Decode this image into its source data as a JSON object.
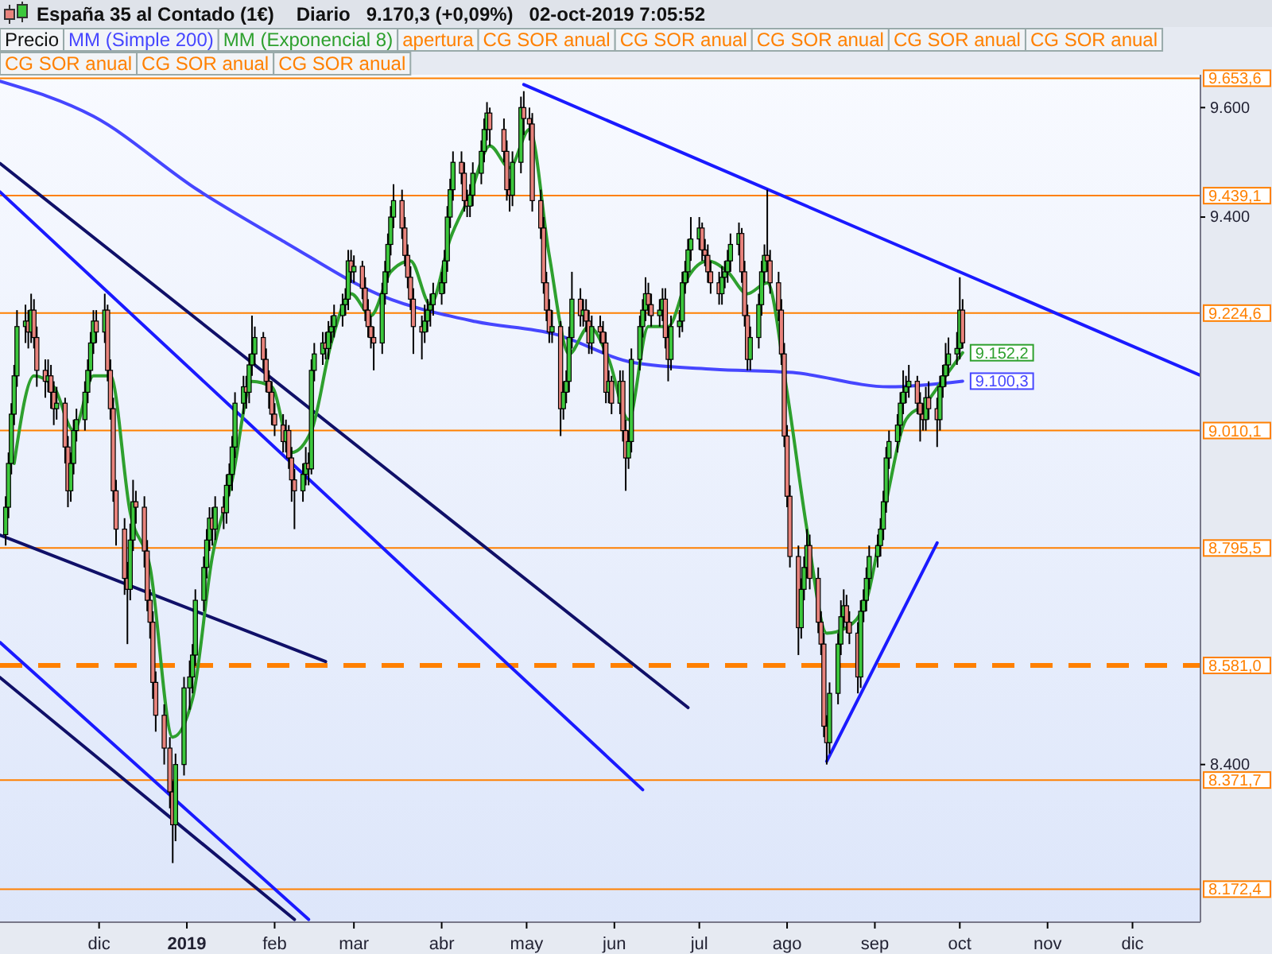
{
  "chart_data": {
    "type": "candlestick",
    "title": "España 35 al Contado (1€)",
    "subtitle": "Diario   9.170,3 (+0,09%)   02-oct-2019 7:05:52",
    "legend": "top left",
    "grid": false,
    "xlim": [
      "2018-10-27",
      "2019-12-25"
    ],
    "xticks": [
      {
        "value": "2018-12-01",
        "label": "dic"
      },
      {
        "value": "2019-01-01",
        "label": "2019"
      },
      {
        "value": "2019-02-01",
        "label": "feb"
      },
      {
        "value": "2019-03-01",
        "label": "mar"
      },
      {
        "value": "2019-04-01",
        "label": "abr"
      },
      {
        "value": "2019-05-01",
        "label": "may"
      },
      {
        "value": "2019-06-01",
        "label": "jun"
      },
      {
        "value": "2019-07-01",
        "label": "jul"
      },
      {
        "value": "2019-08-01",
        "label": "ago"
      },
      {
        "value": "2019-09-01",
        "label": "sep"
      },
      {
        "value": "2019-10-01",
        "label": "oct"
      },
      {
        "value": "2019-11-01",
        "label": "nov"
      },
      {
        "value": "2019-12-01",
        "label": "dic"
      }
    ],
    "ylim": [
      8112,
      9660
    ],
    "yticks": [
      {
        "value": 9600,
        "label": "9.600"
      },
      {
        "value": 9400,
        "label": "9.400"
      },
      {
        "value": 8400,
        "label": "8.400"
      }
    ],
    "ref_lines": [
      {
        "axis": "y",
        "value": 9653.6,
        "label": "9.653,6",
        "color": "#ff8000"
      },
      {
        "axis": "y",
        "value": 9439.1,
        "label": "9.439,1",
        "color": "#ff8000"
      },
      {
        "axis": "y",
        "value": 9224.6,
        "label": "9.224,6",
        "color": "#ff8000"
      },
      {
        "axis": "y",
        "value": 9010.1,
        "label": "9.010,1",
        "color": "#ff8000"
      },
      {
        "axis": "y",
        "value": 8795.5,
        "label": "8.795,5",
        "color": "#ff8000"
      },
      {
        "axis": "y",
        "value": 8581.0,
        "label": "8.581,0",
        "color": "#ff8000",
        "line_style": "dashed"
      },
      {
        "axis": "y",
        "value": 8371.7,
        "label": "8.371,7",
        "color": "#ff8000"
      },
      {
        "axis": "y",
        "value": 8172.4,
        "label": "8.172,4",
        "color": "#ff8000"
      }
    ],
    "annotations": [
      "apertura",
      "CG SOR anual",
      "CG SOR anual",
      "CG SOR anual",
      "CG SOR anual",
      "CG SOR anual",
      "CG SOR anual",
      "CG SOR anual",
      "CG SOR anual"
    ],
    "series": [
      {
        "type": "line",
        "color": "#101068",
        "x": [
          "2018-10-27",
          "2019-06-27"
        ],
        "values": [
          9498,
          8504
        ]
      },
      {
        "type": "line",
        "color": "#1a1aff",
        "x": [
          "2018-10-27",
          "2019-06-11"
        ],
        "values": [
          9446,
          8354
        ]
      },
      {
        "type": "line",
        "color": "#101068",
        "x": [
          "2018-10-27",
          "2019-02-19"
        ],
        "values": [
          8819,
          8588
        ]
      },
      {
        "type": "line",
        "color": "#1a1aff",
        "x": [
          "2018-10-27",
          "2019-02-13"
        ],
        "values": [
          8623,
          8117
        ]
      },
      {
        "type": "line",
        "color": "#101068",
        "x": [
          "2018-10-27",
          "2019-02-08"
        ],
        "values": [
          8559,
          8117
        ]
      },
      {
        "type": "line",
        "color": "#1a1aff",
        "x": [
          "2019-04-30",
          "2019-12-25"
        ],
        "values": [
          9642,
          9111
        ]
      },
      {
        "type": "line",
        "color": "#1a1aff",
        "x": [
          "2019-08-15",
          "2019-09-23"
        ],
        "values": [
          8406,
          8805
        ]
      },
      {
        "type": "line",
        "name": "MM (Simple 200)",
        "color": "#4646ff",
        "x": [
          "2018-10-27",
          "2018-11-29",
          "2019-01-05",
          "2019-02-05",
          "2019-03-10",
          "2019-04-13",
          "2019-05-11",
          "2019-06-08",
          "2019-07-06",
          "2019-08-03",
          "2019-09-06",
          "2019-10-02"
        ],
        "values": [
          9648,
          9584,
          9449,
          9353,
          9258,
          9209,
          9186,
          9134,
          9122,
          9116,
          9090,
          9100.3
        ],
        "value_labels": [
          null,
          null,
          null,
          null,
          null,
          null,
          null,
          null,
          null,
          null,
          null,
          "9.100,3"
        ]
      },
      {
        "name": "Precio",
        "color": "#000000",
        "x": [
          "2018-10-29",
          "2018-10-30",
          "2018-10-31",
          "2018-11-01",
          "2018-11-02",
          "2018-11-05",
          "2018-11-06",
          "2018-11-07",
          "2018-11-08",
          "2018-11-09",
          "2018-11-12",
          "2018-11-13",
          "2018-11-14",
          "2018-11-15",
          "2018-11-16",
          "2018-11-19",
          "2018-11-20",
          "2018-11-21",
          "2018-11-22",
          "2018-11-23",
          "2018-11-26",
          "2018-11-27",
          "2018-11-28",
          "2018-11-29",
          "2018-11-30",
          "2018-12-03",
          "2018-12-04",
          "2018-12-05",
          "2018-12-06",
          "2018-12-07",
          "2018-12-10",
          "2018-12-11",
          "2018-12-12",
          "2018-12-13",
          "2018-12-14",
          "2018-12-17",
          "2018-12-18",
          "2018-12-19",
          "2018-12-20",
          "2018-12-21",
          "2018-12-24",
          "2018-12-26",
          "2018-12-27",
          "2018-12-28",
          "2018-12-31",
          "2019-01-02",
          "2019-01-03",
          "2019-01-04",
          "2019-01-07",
          "2019-01-08",
          "2019-01-09",
          "2019-01-10",
          "2019-01-11",
          "2019-01-14",
          "2019-01-15",
          "2019-01-16",
          "2019-01-17",
          "2019-01-18",
          "2019-01-21",
          "2019-01-22",
          "2019-01-23",
          "2019-01-24",
          "2019-01-25",
          "2019-01-28",
          "2019-01-29",
          "2019-01-30",
          "2019-01-31",
          "2019-02-01",
          "2019-02-04",
          "2019-02-05",
          "2019-02-06",
          "2019-02-07",
          "2019-02-08",
          "2019-02-11",
          "2019-02-12",
          "2019-02-13",
          "2019-02-14",
          "2019-02-15",
          "2019-02-18",
          "2019-02-19",
          "2019-02-20",
          "2019-02-21",
          "2019-02-22",
          "2019-02-25",
          "2019-02-26",
          "2019-02-27",
          "2019-02-28",
          "2019-03-01",
          "2019-03-04",
          "2019-03-05",
          "2019-03-06",
          "2019-03-07",
          "2019-03-08",
          "2019-03-11",
          "2019-03-12",
          "2019-03-13",
          "2019-03-14",
          "2019-03-15",
          "2019-03-18",
          "2019-03-19",
          "2019-03-20",
          "2019-03-21",
          "2019-03-22",
          "2019-03-25",
          "2019-03-26",
          "2019-03-27",
          "2019-03-28",
          "2019-03-29",
          "2019-04-01",
          "2019-04-02",
          "2019-04-03",
          "2019-04-04",
          "2019-04-05",
          "2019-04-08",
          "2019-04-09",
          "2019-04-10",
          "2019-04-11",
          "2019-04-12",
          "2019-04-15",
          "2019-04-16",
          "2019-04-17",
          "2019-04-18",
          "2019-04-23",
          "2019-04-24",
          "2019-04-25",
          "2019-04-26",
          "2019-04-29",
          "2019-04-30",
          "2019-05-02",
          "2019-05-03",
          "2019-05-06",
          "2019-05-07",
          "2019-05-08",
          "2019-05-09",
          "2019-05-10",
          "2019-05-13",
          "2019-05-14",
          "2019-05-15",
          "2019-05-16",
          "2019-05-17",
          "2019-05-20",
          "2019-05-21",
          "2019-05-22",
          "2019-05-23",
          "2019-05-24",
          "2019-05-27",
          "2019-05-28",
          "2019-05-29",
          "2019-05-30",
          "2019-05-31",
          "2019-06-03",
          "2019-06-04",
          "2019-06-05",
          "2019-06-06",
          "2019-06-07",
          "2019-06-10",
          "2019-06-11",
          "2019-06-12",
          "2019-06-13",
          "2019-06-14",
          "2019-06-17",
          "2019-06-18",
          "2019-06-19",
          "2019-06-20",
          "2019-06-21",
          "2019-06-24",
          "2019-06-25",
          "2019-06-26",
          "2019-06-27",
          "2019-06-28",
          "2019-07-01",
          "2019-07-02",
          "2019-07-03",
          "2019-07-04",
          "2019-07-05",
          "2019-07-08",
          "2019-07-09",
          "2019-07-10",
          "2019-07-11",
          "2019-07-12",
          "2019-07-15",
          "2019-07-16",
          "2019-07-17",
          "2019-07-18",
          "2019-07-19",
          "2019-07-22",
          "2019-07-23",
          "2019-07-24",
          "2019-07-25",
          "2019-07-26",
          "2019-07-29",
          "2019-07-30",
          "2019-07-31",
          "2019-08-01",
          "2019-08-02",
          "2019-08-05",
          "2019-08-06",
          "2019-08-07",
          "2019-08-08",
          "2019-08-09",
          "2019-08-12",
          "2019-08-13",
          "2019-08-14",
          "2019-08-15",
          "2019-08-16",
          "2019-08-19",
          "2019-08-20",
          "2019-08-21",
          "2019-08-22",
          "2019-08-23",
          "2019-08-26",
          "2019-08-27",
          "2019-08-28",
          "2019-08-29",
          "2019-08-30",
          "2019-09-02",
          "2019-09-03",
          "2019-09-04",
          "2019-09-05",
          "2019-09-06",
          "2019-09-09",
          "2019-09-10",
          "2019-09-11",
          "2019-09-12",
          "2019-09-13",
          "2019-09-16",
          "2019-09-17",
          "2019-09-18",
          "2019-09-19",
          "2019-09-20",
          "2019-09-23",
          "2019-09-24",
          "2019-09-25",
          "2019-09-26",
          "2019-09-27",
          "2019-09-30",
          "2019-10-01",
          "2019-10-02"
        ],
        "ohlc": [
          [
            8820,
            8890,
            8800,
            8870
          ],
          [
            8870,
            8970,
            8850,
            8950
          ],
          [
            8950,
            9060,
            8930,
            9040
          ],
          [
            9040,
            9130,
            9020,
            9110
          ],
          [
            9110,
            9230,
            9090,
            9200
          ],
          [
            9200,
            9240,
            9170,
            9210
          ],
          [
            9210,
            9230,
            9160,
            9190
          ],
          [
            9190,
            9260,
            9170,
            9230
          ],
          [
            9230,
            9250,
            9160,
            9180
          ],
          [
            9180,
            9200,
            9090,
            9120
          ],
          [
            9120,
            9140,
            9070,
            9100
          ],
          [
            9100,
            9140,
            9080,
            9110
          ],
          [
            9110,
            9130,
            9050,
            9080
          ],
          [
            9080,
            9100,
            9020,
            9050
          ],
          [
            9050,
            9090,
            9030,
            9060
          ],
          [
            9060,
            9070,
            8950,
            8980
          ],
          [
            8980,
            9000,
            8870,
            8900
          ],
          [
            8900,
            8970,
            8880,
            8950
          ],
          [
            8950,
            9030,
            8930,
            9010
          ],
          [
            9010,
            9050,
            8990,
            9030
          ],
          [
            9030,
            9100,
            9010,
            9080
          ],
          [
            9080,
            9140,
            9060,
            9120
          ],
          [
            9120,
            9190,
            9100,
            9170
          ],
          [
            9170,
            9230,
            9150,
            9210
          ],
          [
            9210,
            9230,
            9170,
            9190
          ],
          [
            9190,
            9260,
            9170,
            9230
          ],
          [
            9230,
            9240,
            9100,
            9120
          ],
          [
            9120,
            9140,
            9030,
            9050
          ],
          [
            9050,
            9070,
            8880,
            8900
          ],
          [
            8900,
            8920,
            8800,
            8830
          ],
          [
            8830,
            8850,
            8710,
            8740
          ],
          [
            8740,
            8770,
            8620,
            8720
          ],
          [
            8720,
            8840,
            8700,
            8810
          ],
          [
            8810,
            8920,
            8790,
            8880
          ],
          [
            8880,
            8900,
            8840,
            8870
          ],
          [
            8870,
            8890,
            8760,
            8790
          ],
          [
            8790,
            8810,
            8680,
            8700
          ],
          [
            8700,
            8720,
            8630,
            8660
          ],
          [
            8660,
            8680,
            8520,
            8550
          ],
          [
            8550,
            8570,
            8460,
            8490
          ],
          [
            8490,
            8510,
            8400,
            8430
          ],
          [
            8430,
            8450,
            8320,
            8350
          ],
          [
            8350,
            8370,
            8220,
            8290
          ],
          [
            8290,
            8420,
            8260,
            8400
          ],
          [
            8400,
            8560,
            8380,
            8540
          ],
          [
            8540,
            8590,
            8500,
            8560
          ],
          [
            8560,
            8620,
            8530,
            8600
          ],
          [
            8600,
            8720,
            8580,
            8700
          ],
          [
            8700,
            8780,
            8680,
            8760
          ],
          [
            8760,
            8830,
            8740,
            8810
          ],
          [
            8810,
            8870,
            8790,
            8850
          ],
          [
            8850,
            8870,
            8800,
            8830
          ],
          [
            8830,
            8890,
            8810,
            8870
          ],
          [
            8870,
            8890,
            8830,
            8860
          ],
          [
            8860,
            8930,
            8840,
            8910
          ],
          [
            8910,
            8950,
            8890,
            8930
          ],
          [
            8930,
            9000,
            8900,
            8980
          ],
          [
            8980,
            9080,
            8960,
            9060
          ],
          [
            9060,
            9110,
            9040,
            9090
          ],
          [
            9090,
            9110,
            9050,
            9080
          ],
          [
            9080,
            9150,
            9060,
            9130
          ],
          [
            9130,
            9220,
            9110,
            9150
          ],
          [
            9150,
            9200,
            9130,
            9180
          ],
          [
            9180,
            9190,
            9120,
            9140
          ],
          [
            9140,
            9160,
            9080,
            9100
          ],
          [
            9100,
            9120,
            9050,
            9080
          ],
          [
            9080,
            9100,
            9020,
            9040
          ],
          [
            9040,
            9060,
            9000,
            9020
          ],
          [
            9020,
            9040,
            8970,
            8990
          ],
          [
            8990,
            9030,
            8970,
            9010
          ],
          [
            9010,
            9020,
            8940,
            8960
          ],
          [
            8960,
            8980,
            8880,
            8920
          ],
          [
            8920,
            8940,
            8830,
            8900
          ],
          [
            8900,
            8950,
            8880,
            8930
          ],
          [
            8930,
            8980,
            8910,
            8950
          ],
          [
            8950,
            8970,
            8910,
            8940
          ],
          [
            8940,
            9140,
            8930,
            9120
          ],
          [
            9120,
            9170,
            9100,
            9150
          ],
          [
            9150,
            9190,
            9130,
            9170
          ],
          [
            9170,
            9190,
            9140,
            9160
          ],
          [
            9160,
            9210,
            9140,
            9190
          ],
          [
            9190,
            9220,
            9170,
            9200
          ],
          [
            9200,
            9240,
            9180,
            9220
          ],
          [
            9220,
            9260,
            9200,
            9240
          ],
          [
            9240,
            9270,
            9220,
            9250
          ],
          [
            9250,
            9340,
            9230,
            9320
          ],
          [
            9320,
            9340,
            9280,
            9300
          ],
          [
            9300,
            9330,
            9280,
            9310
          ],
          [
            9310,
            9320,
            9250,
            9270
          ],
          [
            9270,
            9290,
            9210,
            9230
          ],
          [
            9230,
            9250,
            9180,
            9200
          ],
          [
            9200,
            9220,
            9160,
            9180
          ],
          [
            9180,
            9200,
            9120,
            9170
          ],
          [
            9170,
            9280,
            9150,
            9260
          ],
          [
            9260,
            9320,
            9240,
            9300
          ],
          [
            9300,
            9370,
            9280,
            9350
          ],
          [
            9350,
            9420,
            9330,
            9400
          ],
          [
            9400,
            9460,
            9380,
            9430
          ],
          [
            9430,
            9450,
            9360,
            9380
          ],
          [
            9380,
            9400,
            9310,
            9330
          ],
          [
            9330,
            9350,
            9270,
            9290
          ],
          [
            9290,
            9310,
            9230,
            9250
          ],
          [
            9250,
            9270,
            9150,
            9200
          ],
          [
            9200,
            9220,
            9140,
            9190
          ],
          [
            9190,
            9240,
            9170,
            9210
          ],
          [
            9210,
            9250,
            9190,
            9230
          ],
          [
            9230,
            9260,
            9200,
            9240
          ],
          [
            9240,
            9280,
            9220,
            9260
          ],
          [
            9260,
            9300,
            9240,
            9280
          ],
          [
            9280,
            9340,
            9260,
            9320
          ],
          [
            9320,
            9420,
            9300,
            9400
          ],
          [
            9400,
            9470,
            9380,
            9450
          ],
          [
            9450,
            9520,
            9430,
            9500
          ],
          [
            9500,
            9520,
            9460,
            9480
          ],
          [
            9480,
            9500,
            9410,
            9430
          ],
          [
            9430,
            9450,
            9400,
            9420
          ],
          [
            9420,
            9460,
            9400,
            9440
          ],
          [
            9440,
            9500,
            9420,
            9480
          ],
          [
            9480,
            9540,
            9460,
            9520
          ],
          [
            9520,
            9580,
            9500,
            9560
          ],
          [
            9560,
            9610,
            9540,
            9590
          ],
          [
            9590,
            9600,
            9530,
            9560
          ],
          [
            9560,
            9580,
            9500,
            9520
          ],
          [
            9520,
            9540,
            9430,
            9450
          ],
          [
            9450,
            9470,
            9410,
            9440
          ],
          [
            9440,
            9520,
            9420,
            9500
          ],
          [
            9500,
            9620,
            9480,
            9600
          ],
          [
            9600,
            9630,
            9550,
            9580
          ],
          [
            9580,
            9600,
            9540,
            9570
          ],
          [
            9570,
            9590,
            9410,
            9430
          ],
          [
            9430,
            9450,
            9360,
            9380
          ],
          [
            9380,
            9400,
            9260,
            9280
          ],
          [
            9280,
            9300,
            9210,
            9230
          ],
          [
            9230,
            9250,
            9170,
            9190
          ],
          [
            9190,
            9230,
            9170,
            9200
          ],
          [
            9200,
            9210,
            9000,
            9050
          ],
          [
            9050,
            9100,
            9030,
            9080
          ],
          [
            9080,
            9120,
            9060,
            9100
          ],
          [
            9100,
            9200,
            9080,
            9180
          ],
          [
            9180,
            9300,
            9160,
            9250
          ],
          [
            9250,
            9270,
            9200,
            9220
          ],
          [
            9220,
            9250,
            9200,
            9230
          ],
          [
            9230,
            9250,
            9190,
            9210
          ],
          [
            9210,
            9230,
            9150,
            9170
          ],
          [
            9170,
            9220,
            9150,
            9200
          ],
          [
            9200,
            9220,
            9170,
            9190
          ],
          [
            9190,
            9210,
            9150,
            9170
          ],
          [
            9170,
            9190,
            9060,
            9080
          ],
          [
            9080,
            9120,
            9060,
            9100
          ],
          [
            9100,
            9110,
            9040,
            9060
          ],
          [
            9060,
            9120,
            9040,
            9100
          ],
          [
            9100,
            9120,
            8990,
            9010
          ],
          [
            9010,
            9030,
            8900,
            8960
          ],
          [
            8960,
            9010,
            8940,
            8990
          ],
          [
            8990,
            9160,
            8970,
            9140
          ],
          [
            9140,
            9220,
            9120,
            9200
          ],
          [
            9200,
            9250,
            9180,
            9230
          ],
          [
            9230,
            9290,
            9210,
            9260
          ],
          [
            9260,
            9280,
            9220,
            9240
          ],
          [
            9240,
            9260,
            9200,
            9220
          ],
          [
            9220,
            9250,
            9200,
            9230
          ],
          [
            9230,
            9270,
            9210,
            9250
          ],
          [
            9250,
            9270,
            9160,
            9180
          ],
          [
            9180,
            9200,
            9100,
            9140
          ],
          [
            9140,
            9220,
            9120,
            9200
          ],
          [
            9200,
            9230,
            9180,
            9210
          ],
          [
            9210,
            9300,
            9190,
            9280
          ],
          [
            9280,
            9320,
            9260,
            9300
          ],
          [
            9300,
            9360,
            9280,
            9340
          ],
          [
            9340,
            9400,
            9320,
            9360
          ],
          [
            9360,
            9400,
            9340,
            9380
          ],
          [
            9380,
            9390,
            9320,
            9340
          ],
          [
            9340,
            9360,
            9310,
            9330
          ],
          [
            9330,
            9350,
            9280,
            9300
          ],
          [
            9300,
            9320,
            9260,
            9280
          ],
          [
            9280,
            9300,
            9240,
            9260
          ],
          [
            9260,
            9310,
            9240,
            9290
          ],
          [
            9290,
            9320,
            9270,
            9300
          ],
          [
            9300,
            9340,
            9280,
            9320
          ],
          [
            9320,
            9370,
            9300,
            9350
          ],
          [
            9350,
            9390,
            9330,
            9370
          ],
          [
            9370,
            9380,
            9280,
            9300
          ],
          [
            9300,
            9320,
            9200,
            9220
          ],
          [
            9220,
            9240,
            9120,
            9140
          ],
          [
            9140,
            9200,
            9120,
            9180
          ],
          [
            9180,
            9260,
            9160,
            9240
          ],
          [
            9240,
            9320,
            9220,
            9300
          ],
          [
            9300,
            9350,
            9280,
            9330
          ],
          [
            9330,
            9450,
            9300,
            9320
          ],
          [
            9320,
            9340,
            9260,
            9280
          ],
          [
            9280,
            9300,
            9210,
            9230
          ],
          [
            9230,
            9250,
            9130,
            9150
          ],
          [
            9150,
            9170,
            8980,
            9000
          ],
          [
            9000,
            9020,
            8870,
            8890
          ],
          [
            8890,
            8910,
            8760,
            8780
          ],
          [
            8780,
            8800,
            8600,
            8650
          ],
          [
            8650,
            8740,
            8630,
            8720
          ],
          [
            8720,
            8780,
            8700,
            8760
          ],
          [
            8760,
            8830,
            8740,
            8800
          ],
          [
            8800,
            8820,
            8720,
            8740
          ],
          [
            8740,
            8760,
            8640,
            8660
          ],
          [
            8660,
            8680,
            8600,
            8620
          ],
          [
            8620,
            8640,
            8450,
            8470
          ],
          [
            8470,
            8490,
            8400,
            8440
          ],
          [
            8440,
            8550,
            8420,
            8530
          ],
          [
            8530,
            8640,
            8510,
            8620
          ],
          [
            8620,
            8700,
            8600,
            8670
          ],
          [
            8670,
            8720,
            8650,
            8690
          ],
          [
            8690,
            8710,
            8640,
            8660
          ],
          [
            8660,
            8680,
            8620,
            8640
          ],
          [
            8640,
            8660,
            8530,
            8560
          ],
          [
            8560,
            8700,
            8540,
            8680
          ],
          [
            8680,
            8720,
            8660,
            8700
          ],
          [
            8700,
            8760,
            8680,
            8740
          ],
          [
            8740,
            8800,
            8720,
            8780
          ],
          [
            8780,
            8820,
            8760,
            8800
          ],
          [
            8800,
            8850,
            8780,
            8830
          ],
          [
            8830,
            8900,
            8810,
            8880
          ],
          [
            8880,
            8980,
            8860,
            8960
          ],
          [
            8960,
            9010,
            8940,
            8990
          ],
          [
            8990,
            9040,
            8970,
            9020
          ],
          [
            9020,
            9080,
            9000,
            9060
          ],
          [
            9060,
            9120,
            9040,
            9080
          ],
          [
            9080,
            9110,
            9060,
            9090
          ],
          [
            9090,
            9130,
            9070,
            9100
          ],
          [
            9100,
            9110,
            9040,
            9060
          ],
          [
            9060,
            9080,
            8990,
            9040
          ],
          [
            9040,
            9060,
            9010,
            9030
          ],
          [
            9030,
            9090,
            9010,
            9070
          ],
          [
            9070,
            9100,
            9030,
            9050
          ],
          [
            9050,
            9070,
            8980,
            9030
          ],
          [
            9030,
            9110,
            9010,
            9090
          ],
          [
            9090,
            9130,
            9070,
            9110
          ],
          [
            9110,
            9170,
            9090,
            9130
          ],
          [
            9130,
            9180,
            9110,
            9150
          ],
          [
            9150,
            9190,
            9130,
            9160
          ],
          [
            9160,
            9290,
            9140,
            9230
          ],
          [
            9230,
            9250,
            9160,
            9170.3
          ]
        ]
      },
      {
        "type": "line",
        "name": "MM (Exponencial 8)",
        "color": "#2ea02e",
        "x": [
          "2018-11-01",
          "2018-11-08",
          "2018-11-15",
          "2018-11-22",
          "2018-11-29",
          "2018-12-05",
          "2018-12-12",
          "2018-12-19",
          "2018-12-27",
          "2019-01-03",
          "2019-01-10",
          "2019-01-17",
          "2019-01-24",
          "2019-01-31",
          "2019-02-07",
          "2019-02-14",
          "2019-02-21",
          "2019-02-28",
          "2019-03-07",
          "2019-03-14",
          "2019-03-21",
          "2019-03-28",
          "2019-04-04",
          "2019-04-11",
          "2019-04-18",
          "2019-04-25",
          "2019-05-02",
          "2019-05-09",
          "2019-05-16",
          "2019-05-23",
          "2019-05-30",
          "2019-06-06",
          "2019-06-13",
          "2019-06-20",
          "2019-06-27",
          "2019-07-04",
          "2019-07-11",
          "2019-07-18",
          "2019-07-25",
          "2019-08-01",
          "2019-08-08",
          "2019-08-15",
          "2019-08-22",
          "2019-08-29",
          "2019-09-05",
          "2019-09-12",
          "2019-09-19",
          "2019-09-26",
          "2019-10-02"
        ],
        "values": [
          8950,
          9110,
          9090,
          9010,
          9110,
          9110,
          8860,
          8760,
          8450,
          8520,
          8780,
          8920,
          9100,
          9090,
          8970,
          9010,
          9170,
          9260,
          9220,
          9300,
          9320,
          9240,
          9360,
          9440,
          9530,
          9490,
          9560,
          9330,
          9150,
          9200,
          9140,
          9030,
          9200,
          9200,
          9290,
          9320,
          9300,
          9260,
          9280,
          9080,
          8830,
          8640,
          8650,
          8700,
          8880,
          9030,
          9060,
          9110,
          9152.2
        ],
        "value_labels": [
          null,
          null,
          null,
          null,
          null,
          null,
          null,
          null,
          null,
          null,
          null,
          null,
          null,
          null,
          null,
          null,
          null,
          null,
          null,
          null,
          null,
          null,
          null,
          null,
          null,
          null,
          null,
          null,
          null,
          null,
          null,
          null,
          null,
          null,
          null,
          null,
          null,
          null,
          null,
          null,
          null,
          null,
          null,
          null,
          null,
          null,
          null,
          null,
          "9.152,2"
        ]
      }
    ]
  }
}
